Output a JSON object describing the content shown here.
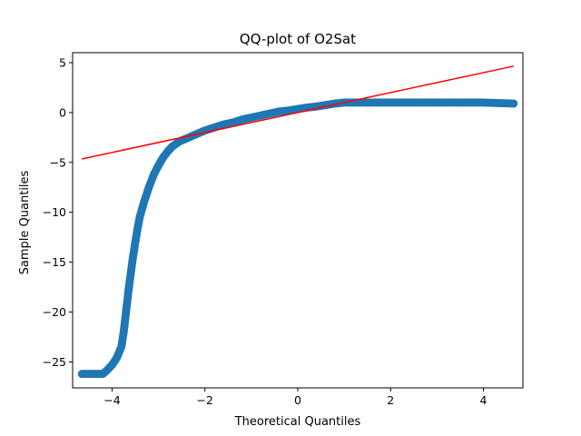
{
  "chart_data": {
    "type": "scatter",
    "title": "QQ-plot of O2Sat",
    "xlabel": "Theoretical Quantiles",
    "ylabel": "Sample Quantiles",
    "xlim": [
      -4.85,
      4.85
    ],
    "ylim": [
      -27.6,
      6.0
    ],
    "xticks": [
      -4,
      -2,
      0,
      2,
      4
    ],
    "yticks": [
      5,
      0,
      -5,
      -10,
      -15,
      -20,
      -25
    ],
    "grid": false,
    "series": [
      {
        "color": "#1f77b4",
        "marker": "circle",
        "points": [
          [
            -4.65,
            -26.2
          ],
          [
            -4.5,
            -26.2
          ],
          [
            -4.35,
            -26.2
          ],
          [
            -4.2,
            -26.2
          ],
          [
            -4.1,
            -25.8
          ],
          [
            -4.0,
            -25.3
          ],
          [
            -3.9,
            -24.6
          ],
          [
            -3.8,
            -23.5
          ],
          [
            -3.75,
            -22.0
          ],
          [
            -3.7,
            -20.0
          ],
          [
            -3.65,
            -18.0
          ],
          [
            -3.6,
            -16.2
          ],
          [
            -3.55,
            -14.5
          ],
          [
            -3.5,
            -13.0
          ],
          [
            -3.45,
            -11.6
          ],
          [
            -3.4,
            -10.4
          ],
          [
            -3.3,
            -8.8
          ],
          [
            -3.2,
            -7.4
          ],
          [
            -3.1,
            -6.2
          ],
          [
            -3.0,
            -5.3
          ],
          [
            -2.9,
            -4.5
          ],
          [
            -2.8,
            -3.9
          ],
          [
            -2.7,
            -3.4
          ],
          [
            -2.55,
            -2.9
          ],
          [
            -2.4,
            -2.6
          ],
          [
            -2.2,
            -2.2
          ],
          [
            -2.0,
            -1.8
          ],
          [
            -1.8,
            -1.5
          ],
          [
            -1.6,
            -1.2
          ],
          [
            -1.4,
            -1.0
          ],
          [
            -1.2,
            -0.7
          ],
          [
            -1.0,
            -0.5
          ],
          [
            -0.8,
            -0.3
          ],
          [
            -0.6,
            -0.1
          ],
          [
            -0.4,
            0.1
          ],
          [
            -0.2,
            0.2
          ],
          [
            0.0,
            0.35
          ],
          [
            0.2,
            0.5
          ],
          [
            0.4,
            0.6
          ],
          [
            0.6,
            0.75
          ],
          [
            0.8,
            0.9
          ],
          [
            1.0,
            1.0
          ],
          [
            1.5,
            1.0
          ],
          [
            2.0,
            1.0
          ],
          [
            2.5,
            1.0
          ],
          [
            3.0,
            1.0
          ],
          [
            3.5,
            1.0
          ],
          [
            4.0,
            1.0
          ],
          [
            4.3,
            0.95
          ],
          [
            4.65,
            0.9
          ]
        ]
      }
    ],
    "reference_line": {
      "color": "#ff0000",
      "x": [
        -4.65,
        4.65
      ],
      "y": [
        -4.65,
        4.65
      ]
    }
  }
}
